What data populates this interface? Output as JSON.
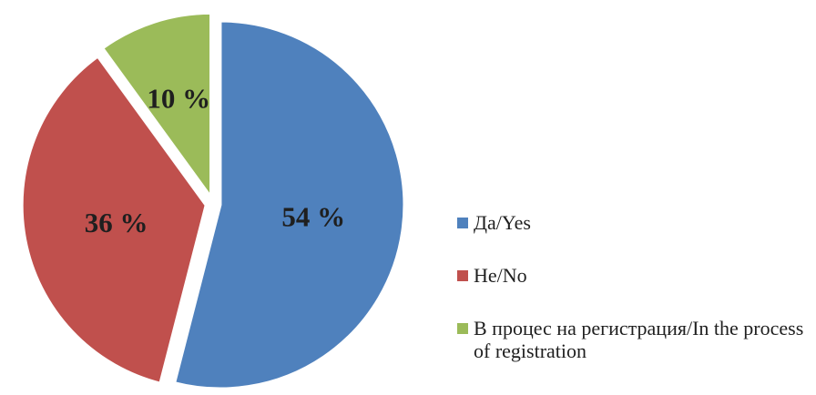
{
  "chart_data": {
    "type": "pie",
    "title": "",
    "slices": [
      {
        "label": "Да/Yes",
        "value": 54,
        "display": "54 %",
        "color": "#4f81bd"
      },
      {
        "label": "Не/No",
        "value": 36,
        "display": "36 %",
        "color": "#c0504d"
      },
      {
        "label": "В процес на регистрация/In the process of registration",
        "value": 10,
        "display": "10 %",
        "color": "#9bbb59"
      }
    ],
    "legend": {
      "position": "right",
      "items": [
        {
          "label": "Да/Yes",
          "color": "#4f81bd"
        },
        {
          "label": "Не/No",
          "color": "#c0504d"
        },
        {
          "label": "В процес на регистрация/In the process of registration",
          "color": "#9bbb59"
        }
      ]
    },
    "exploded": true
  }
}
